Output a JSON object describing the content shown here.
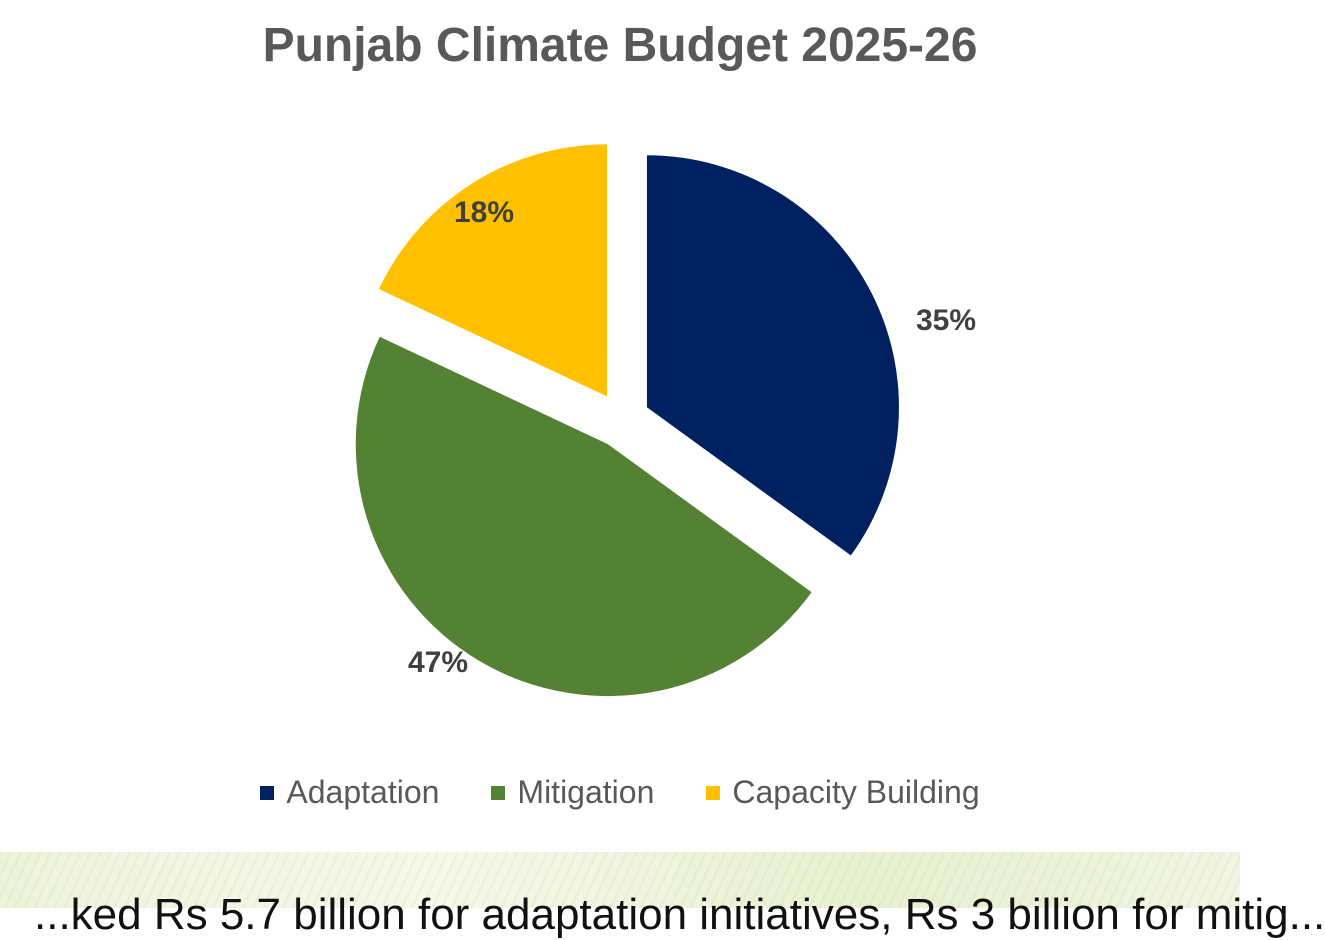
{
  "chart_data": {
    "type": "pie",
    "title": "Punjab Climate Budget 2025-26",
    "categories": [
      "Adaptation",
      "Mitigation",
      "Capacity Building"
    ],
    "values": [
      35,
      47,
      18
    ],
    "labels": [
      "35%",
      "47%",
      "18%"
    ],
    "colors": [
      "#002060",
      "#548235",
      "#FFC000"
    ],
    "legend_position": "bottom",
    "exploded": true
  },
  "footer": {
    "text": "...ked Rs 5.7 billion for adaptation initiatives, Rs 3 billion for mitig..."
  }
}
